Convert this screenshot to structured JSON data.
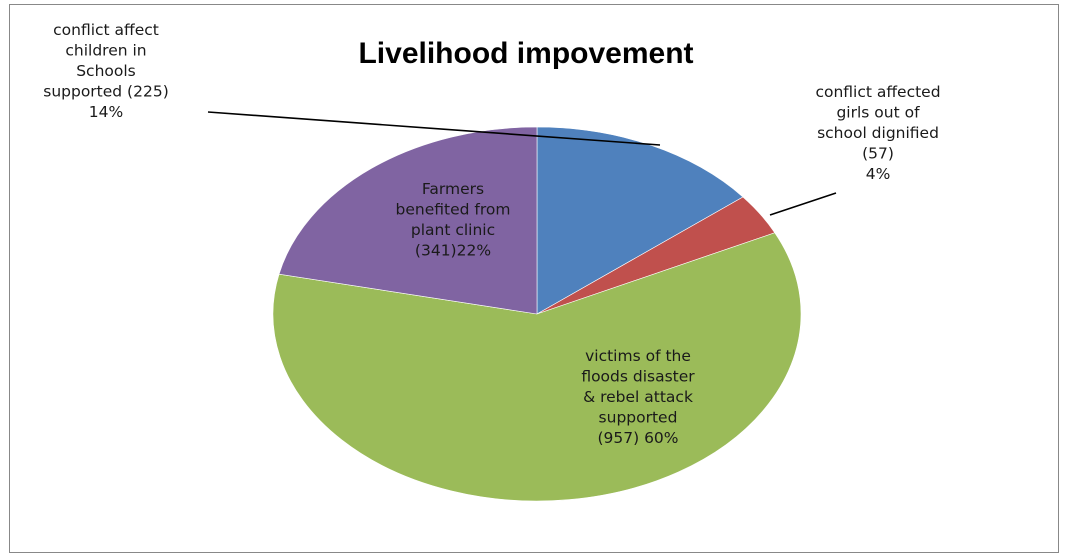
{
  "chart_data": {
    "type": "pie",
    "title": "Livelihood impovement",
    "slices": [
      {
        "label_lines": [
          "conflict affect",
          "children in",
          "Schools",
          "supported (225)",
          "14%"
        ],
        "value": 225,
        "percent": 14,
        "color": "#4F81BD"
      },
      {
        "label_lines": [
          "conflict affected",
          "girls out of",
          "school dignified",
          "(57)",
          "4%"
        ],
        "value": 57,
        "percent": 4,
        "color": "#C0504D"
      },
      {
        "label_lines": [
          "victims of  the",
          "floods disaster",
          "& rebel attack",
          "supported",
          "(957) 60%"
        ],
        "value": 957,
        "percent": 60,
        "color": "#9BBB59"
      },
      {
        "label_lines": [
          "Farmers",
          "benefited from",
          "plant clinic",
          "(341)22%"
        ],
        "value": 341,
        "percent": 22,
        "color": "#8064A2"
      }
    ],
    "start_angle": "12 o'clock",
    "direction": "clockwise",
    "legend": "none",
    "label_positions": [
      "outside-left with leader line",
      "outside-right with leader line",
      "inside",
      "inside"
    ]
  }
}
